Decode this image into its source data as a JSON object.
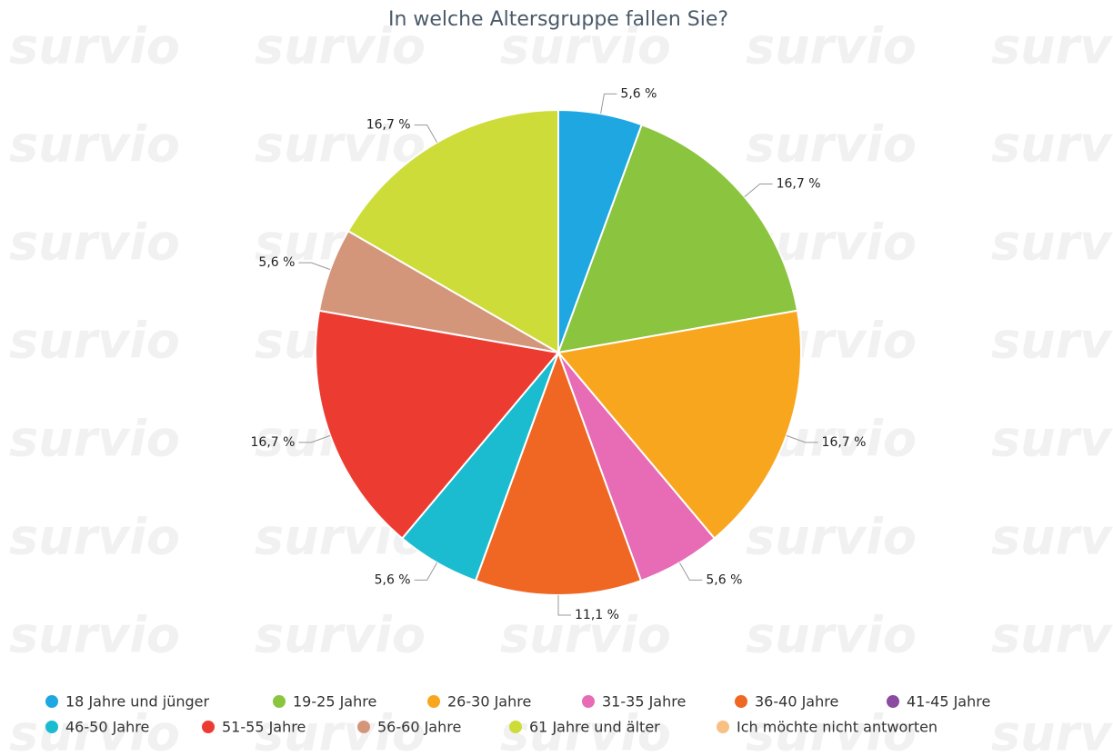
{
  "chart_data": {
    "type": "pie",
    "title": "In welche Altersgruppe fallen Sie?",
    "watermark": "survio",
    "categories": [
      "18 Jahre und jünger",
      "19-25 Jahre",
      "26-30 Jahre",
      "31-35 Jahre",
      "36-40 Jahre",
      "41-45 Jahre",
      "46-50 Jahre",
      "51-55 Jahre",
      "56-60 Jahre",
      "61 Jahre und älter",
      "Ich möchte nicht antworten"
    ],
    "values": [
      5.6,
      16.7,
      16.7,
      5.6,
      11.1,
      0,
      5.6,
      16.7,
      5.6,
      16.7,
      0
    ],
    "value_labels": [
      "5,6 %",
      "16,7 %",
      "16,7 %",
      "5,6 %",
      "11,1 %",
      null,
      "5,6 %",
      "16,7 %",
      "5,6 %",
      "16,7 %",
      null
    ],
    "colors": [
      "#1ea7e1",
      "#8bc43f",
      "#f9a61f",
      "#e76bb5",
      "#ef6723",
      "#8b4ba0",
      "#1bbccf",
      "#ec3c32",
      "#d4967a",
      "#cddc39",
      "#f8c083"
    ],
    "legend": "bottom"
  }
}
